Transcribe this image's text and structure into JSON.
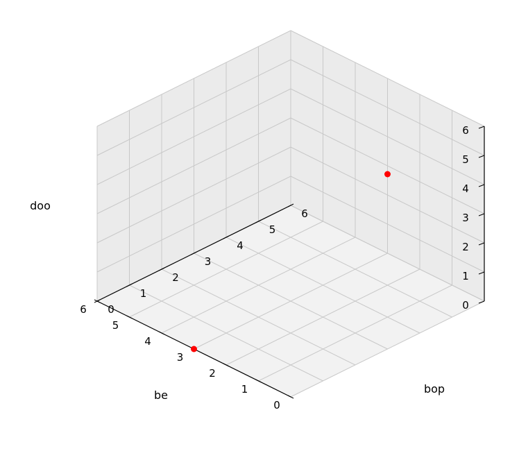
{
  "chart_data": {
    "type": "scatter",
    "projection": "3d",
    "xlabel": "be",
    "ylabel": "bop",
    "zlabel": "doo",
    "xlim": [
      0,
      6
    ],
    "ylim": [
      0,
      6
    ],
    "zlim": [
      0,
      6
    ],
    "xticks": [
      "0",
      "1",
      "2",
      "3",
      "4",
      "5",
      "6"
    ],
    "yticks": [
      "0",
      "1",
      "2",
      "3",
      "4",
      "5",
      "6"
    ],
    "zticks": [
      "0",
      "1",
      "2",
      "3",
      "4",
      "5",
      "6"
    ],
    "grid": true,
    "series": [
      {
        "color": "#ff0000",
        "points": [
          {
            "x": 3,
            "y": 0,
            "z": 0
          },
          {
            "x": 0,
            "y": 3,
            "z": 6
          }
        ]
      }
    ],
    "colors": {
      "pane": "#f2f2f2",
      "pane_shade": "#ebebeb",
      "grid": "#c8c8c8",
      "axis": "#000000"
    }
  }
}
